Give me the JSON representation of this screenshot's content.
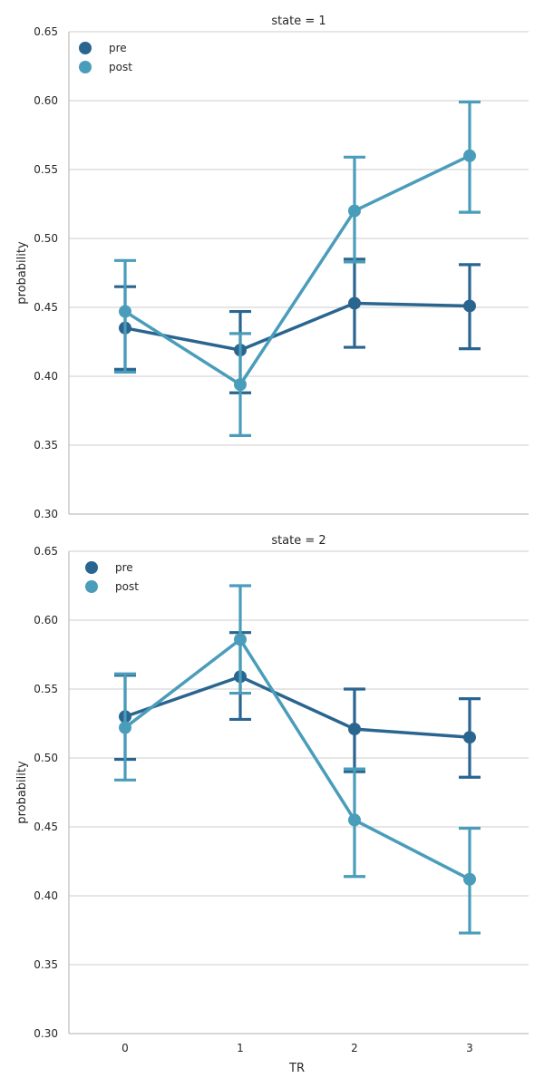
{
  "colors": {
    "pre": "#2a6590",
    "post": "#4a9dba",
    "grid": "#cccccc",
    "axis": "#bfbfbf",
    "text": "#262626"
  },
  "chart_data": [
    {
      "type": "line",
      "title": "state = 1",
      "xlabel": "",
      "ylabel": "probability",
      "categories": [
        "0",
        "1",
        "2",
        "3"
      ],
      "ylim": [
        0.3,
        0.65
      ],
      "yticks": [
        "0.30",
        "0.35",
        "0.40",
        "0.45",
        "0.50",
        "0.55",
        "0.60",
        "0.65"
      ],
      "grid": true,
      "legend": "top-left",
      "series": [
        {
          "name": "pre",
          "color": "#2a6590",
          "values": [
            0.435,
            0.419,
            0.453,
            0.451
          ],
          "ci_low": [
            0.405,
            0.388,
            0.421,
            0.42
          ],
          "ci_high": [
            0.465,
            0.447,
            0.485,
            0.481
          ]
        },
        {
          "name": "post",
          "color": "#4a9dba",
          "values": [
            0.447,
            0.394,
            0.52,
            0.56
          ],
          "ci_low": [
            0.403,
            0.357,
            0.483,
            0.519
          ],
          "ci_high": [
            0.484,
            0.431,
            0.559,
            0.599
          ]
        }
      ]
    },
    {
      "type": "line",
      "title": "state = 2",
      "xlabel": "TR",
      "ylabel": "probability",
      "categories": [
        "0",
        "1",
        "2",
        "3"
      ],
      "ylim": [
        0.3,
        0.65
      ],
      "yticks": [
        "0.30",
        "0.35",
        "0.40",
        "0.45",
        "0.50",
        "0.55",
        "0.60",
        "0.65"
      ],
      "grid": true,
      "legend": "top-left",
      "series": [
        {
          "name": "pre",
          "color": "#2a6590",
          "values": [
            0.53,
            0.559,
            0.521,
            0.515
          ],
          "ci_low": [
            0.499,
            0.528,
            0.49,
            0.486
          ],
          "ci_high": [
            0.56,
            0.591,
            0.55,
            0.543
          ]
        },
        {
          "name": "post",
          "color": "#4a9dba",
          "values": [
            0.522,
            0.586,
            0.455,
            0.412
          ],
          "ci_low": [
            0.484,
            0.547,
            0.414,
            0.373
          ],
          "ci_high": [
            0.561,
            0.625,
            0.492,
            0.449
          ]
        }
      ]
    }
  ]
}
